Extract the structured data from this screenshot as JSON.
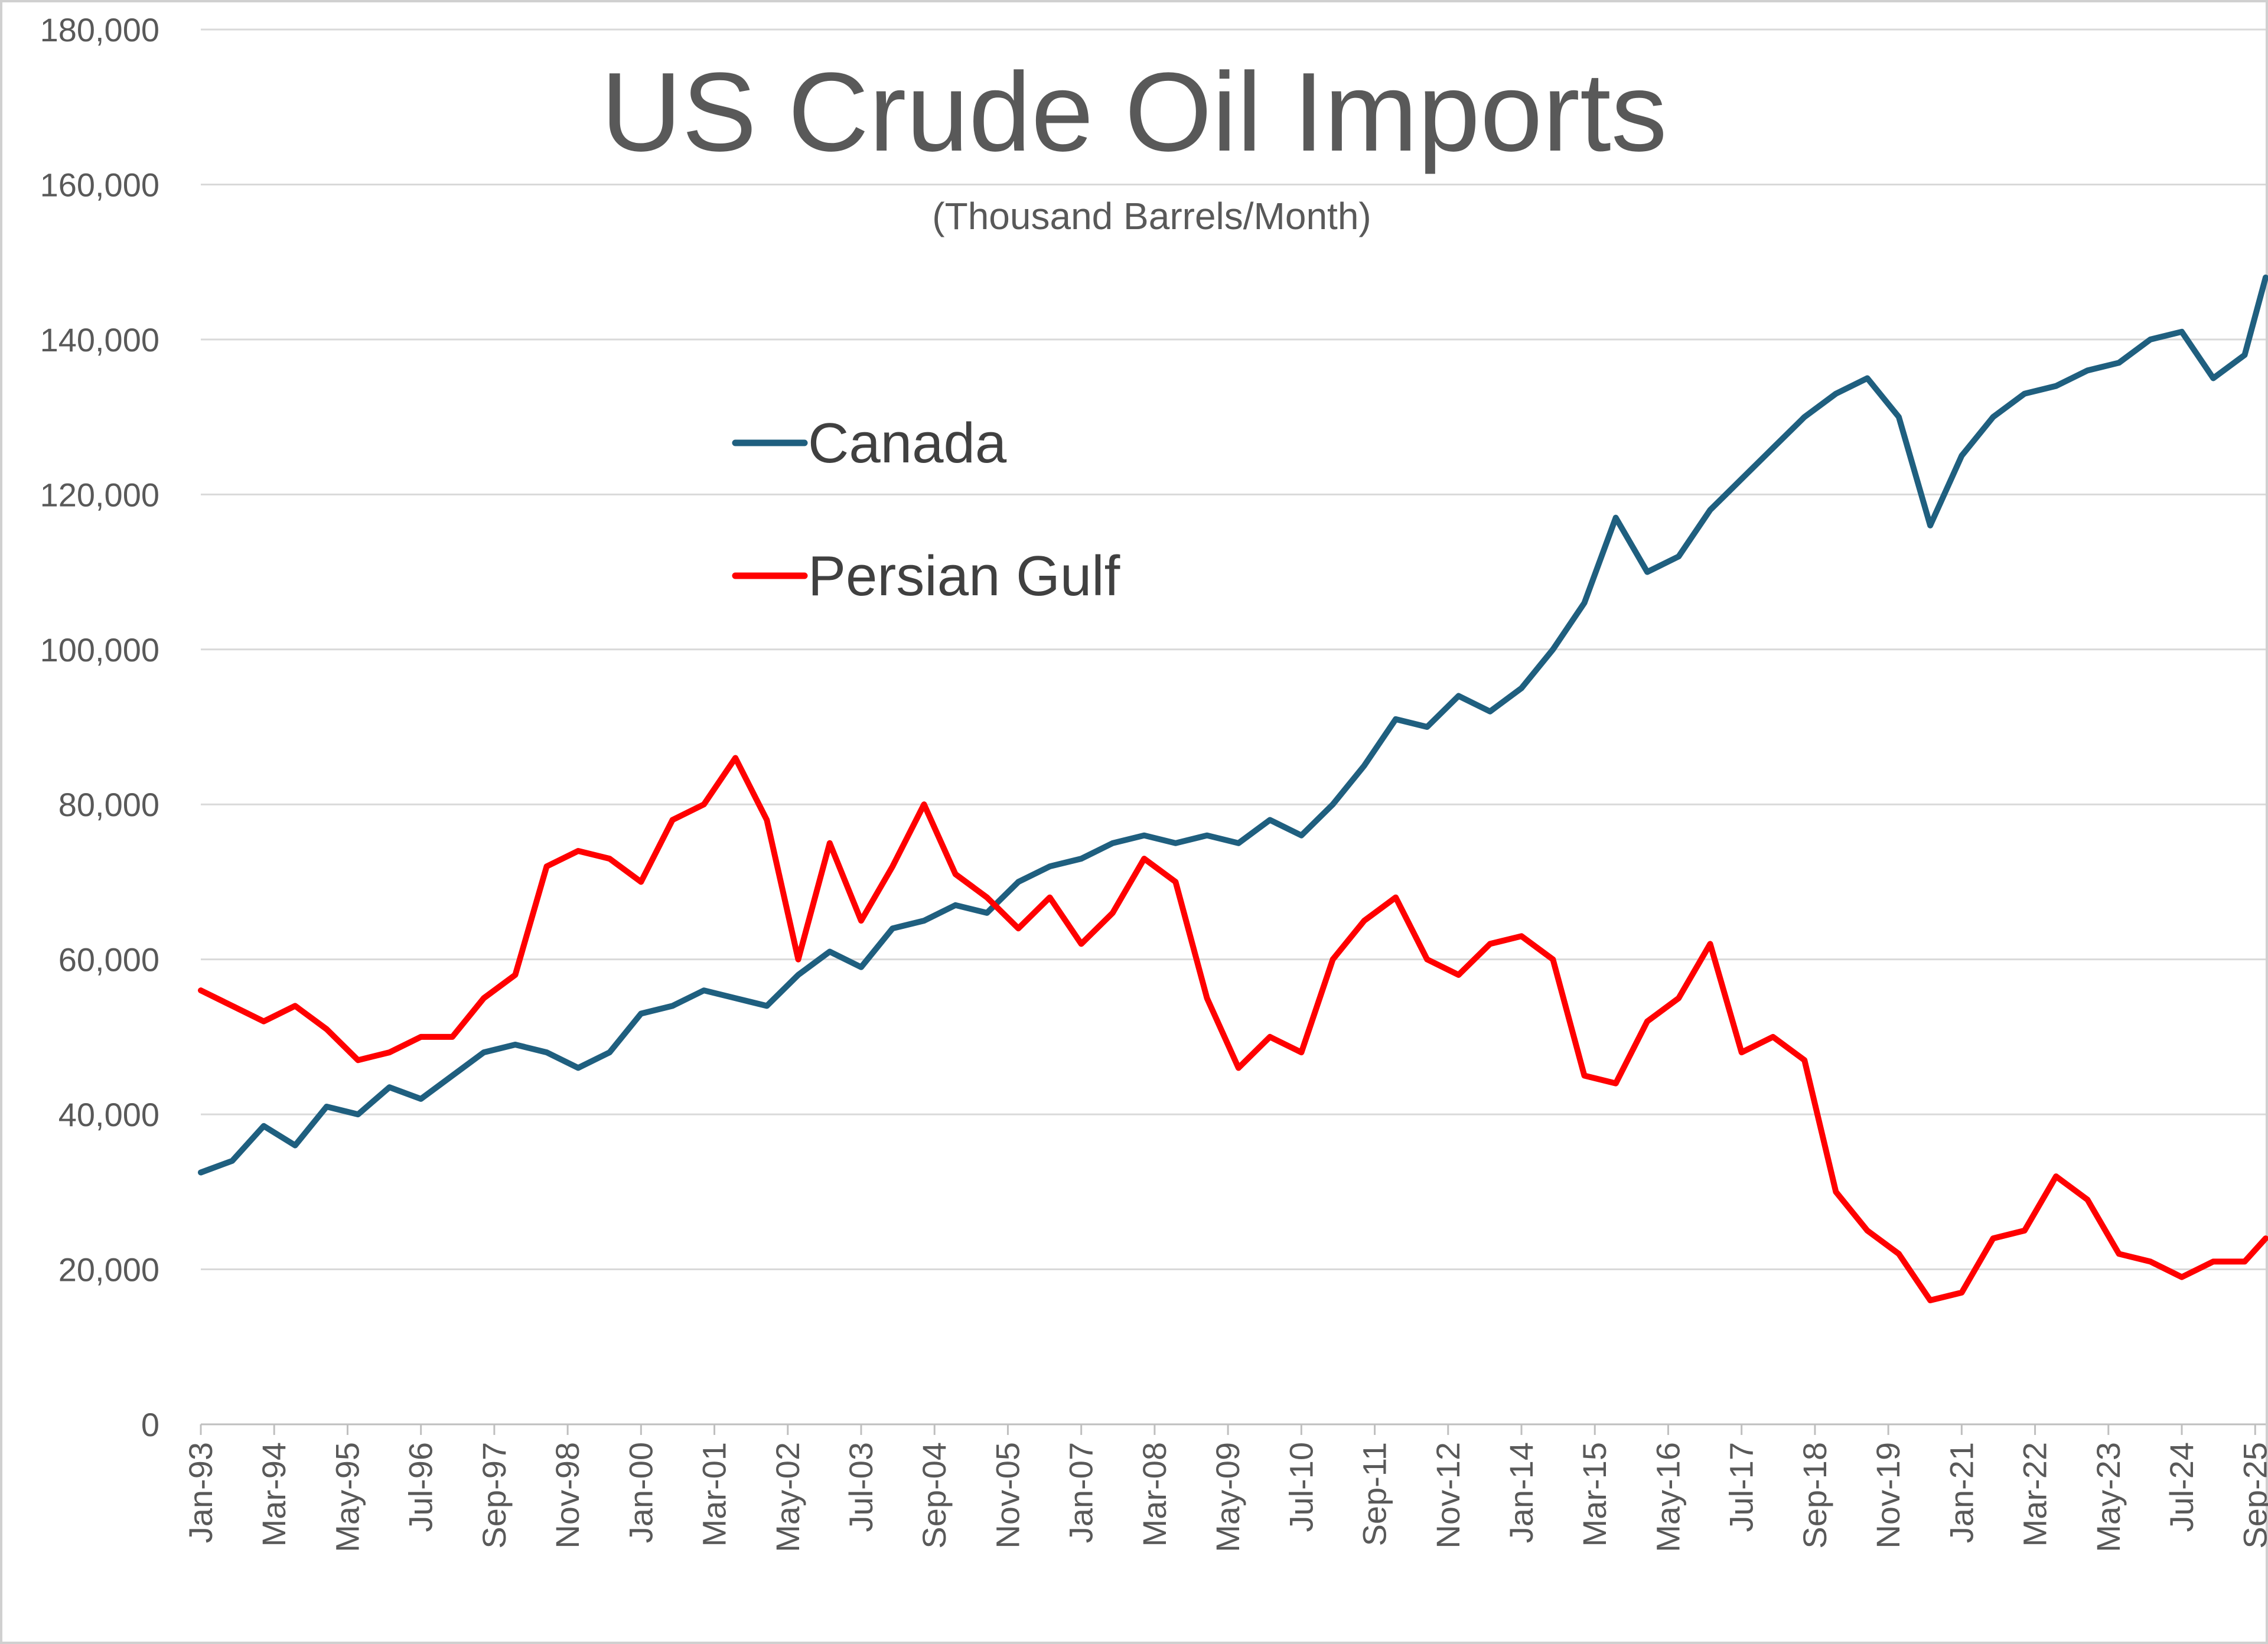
{
  "chart_data": {
    "type": "line",
    "title": "US Crude Oil Imports",
    "subtitle": "(Thousand Barrels/Month)",
    "xlabel": "",
    "ylabel": "",
    "ylim": [
      0,
      180000
    ],
    "yticks": [
      0,
      20000,
      40000,
      60000,
      80000,
      100000,
      120000,
      140000,
      160000,
      180000
    ],
    "ytick_labels": [
      "0",
      "20,000",
      "40,000",
      "60,000",
      "80,000",
      "100,000",
      "120,000",
      "140,000",
      "160,000",
      "180,000"
    ],
    "x_tick_labels": [
      "Jan-93",
      "Mar-94",
      "May-95",
      "Jul-96",
      "Sep-97",
      "Nov-98",
      "Jan-00",
      "Mar-01",
      "May-02",
      "Jul-03",
      "Sep-04",
      "Nov-05",
      "Jan-07",
      "Mar-08",
      "May-09",
      "Jul-10",
      "Sep-11",
      "Nov-12",
      "Jan-14",
      "Mar-15",
      "May-16",
      "Jul-17",
      "Sep-18",
      "Nov-19",
      "Jan-21",
      "Mar-22",
      "May-23",
      "Jul-24",
      "Sep-25"
    ],
    "grid": true,
    "legend": "upper-left",
    "series": [
      {
        "name": "Canada",
        "color": "#1f5f7f",
        "points": [
          [
            "1993-01",
            32500
          ],
          [
            "1993-07",
            34000
          ],
          [
            "1994-01",
            38500
          ],
          [
            "1994-07",
            36000
          ],
          [
            "1995-01",
            41000
          ],
          [
            "1995-07",
            40000
          ],
          [
            "1996-01",
            43500
          ],
          [
            "1996-07",
            42000
          ],
          [
            "1997-01",
            45000
          ],
          [
            "1997-07",
            48000
          ],
          [
            "1998-01",
            49000
          ],
          [
            "1998-07",
            48000
          ],
          [
            "1999-01",
            46000
          ],
          [
            "1999-07",
            48000
          ],
          [
            "2000-01",
            53000
          ],
          [
            "2000-07",
            54000
          ],
          [
            "2001-01",
            56000
          ],
          [
            "2001-07",
            55000
          ],
          [
            "2002-01",
            54000
          ],
          [
            "2002-07",
            58000
          ],
          [
            "2003-01",
            61000
          ],
          [
            "2003-07",
            59000
          ],
          [
            "2004-01",
            64000
          ],
          [
            "2004-07",
            65000
          ],
          [
            "2005-01",
            67000
          ],
          [
            "2005-07",
            66000
          ],
          [
            "2006-01",
            70000
          ],
          [
            "2006-07",
            72000
          ],
          [
            "2007-01",
            73000
          ],
          [
            "2007-07",
            75000
          ],
          [
            "2008-01",
            76000
          ],
          [
            "2008-07",
            75000
          ],
          [
            "2009-01",
            76000
          ],
          [
            "2009-07",
            75000
          ],
          [
            "2010-01",
            78000
          ],
          [
            "2010-07",
            76000
          ],
          [
            "2011-01",
            80000
          ],
          [
            "2011-07",
            85000
          ],
          [
            "2012-01",
            91000
          ],
          [
            "2012-07",
            90000
          ],
          [
            "2013-01",
            94000
          ],
          [
            "2013-07",
            92000
          ],
          [
            "2014-01",
            95000
          ],
          [
            "2014-07",
            100000
          ],
          [
            "2015-01",
            106000
          ],
          [
            "2015-07",
            117000
          ],
          [
            "2016-01",
            110000
          ],
          [
            "2016-07",
            112000
          ],
          [
            "2017-01",
            118000
          ],
          [
            "2017-07",
            122000
          ],
          [
            "2018-01",
            126000
          ],
          [
            "2018-07",
            130000
          ],
          [
            "2019-01",
            133000
          ],
          [
            "2019-07",
            135000
          ],
          [
            "2020-01",
            130000
          ],
          [
            "2020-07",
            116000
          ],
          [
            "2021-01",
            125000
          ],
          [
            "2021-07",
            130000
          ],
          [
            "2022-01",
            133000
          ],
          [
            "2022-07",
            134000
          ],
          [
            "2023-01",
            136000
          ],
          [
            "2023-07",
            137000
          ],
          [
            "2024-01",
            140000
          ],
          [
            "2024-07",
            141000
          ],
          [
            "2025-01",
            135000
          ],
          [
            "2025-07",
            138000
          ],
          [
            "2025-11",
            148000
          ]
        ]
      },
      {
        "name": "Persian Gulf",
        "color": "#ff0000",
        "points": [
          [
            "1993-01",
            56000
          ],
          [
            "1993-07",
            54000
          ],
          [
            "1994-01",
            52000
          ],
          [
            "1994-07",
            54000
          ],
          [
            "1995-01",
            51000
          ],
          [
            "1995-07",
            47000
          ],
          [
            "1996-01",
            48000
          ],
          [
            "1996-07",
            50000
          ],
          [
            "1997-01",
            50000
          ],
          [
            "1997-07",
            55000
          ],
          [
            "1998-01",
            58000
          ],
          [
            "1998-07",
            72000
          ],
          [
            "1999-01",
            74000
          ],
          [
            "1999-07",
            73000
          ],
          [
            "2000-01",
            70000
          ],
          [
            "2000-07",
            78000
          ],
          [
            "2001-01",
            80000
          ],
          [
            "2001-07",
            86000
          ],
          [
            "2002-01",
            78000
          ],
          [
            "2002-07",
            60000
          ],
          [
            "2003-01",
            75000
          ],
          [
            "2003-07",
            65000
          ],
          [
            "2004-01",
            72000
          ],
          [
            "2004-07",
            80000
          ],
          [
            "2005-01",
            71000
          ],
          [
            "2005-07",
            68000
          ],
          [
            "2006-01",
            64000
          ],
          [
            "2006-07",
            68000
          ],
          [
            "2007-01",
            62000
          ],
          [
            "2007-07",
            66000
          ],
          [
            "2008-01",
            73000
          ],
          [
            "2008-07",
            70000
          ],
          [
            "2009-01",
            55000
          ],
          [
            "2009-07",
            46000
          ],
          [
            "2010-01",
            50000
          ],
          [
            "2010-07",
            48000
          ],
          [
            "2011-01",
            60000
          ],
          [
            "2011-07",
            65000
          ],
          [
            "2012-01",
            68000
          ],
          [
            "2012-07",
            60000
          ],
          [
            "2013-01",
            58000
          ],
          [
            "2013-07",
            62000
          ],
          [
            "2014-01",
            63000
          ],
          [
            "2014-07",
            60000
          ],
          [
            "2015-01",
            45000
          ],
          [
            "2015-07",
            44000
          ],
          [
            "2016-01",
            52000
          ],
          [
            "2016-07",
            55000
          ],
          [
            "2017-01",
            62000
          ],
          [
            "2017-07",
            48000
          ],
          [
            "2018-01",
            50000
          ],
          [
            "2018-07",
            47000
          ],
          [
            "2019-01",
            30000
          ],
          [
            "2019-07",
            25000
          ],
          [
            "2020-01",
            22000
          ],
          [
            "2020-07",
            16000
          ],
          [
            "2021-01",
            17000
          ],
          [
            "2021-07",
            24000
          ],
          [
            "2022-01",
            25000
          ],
          [
            "2022-07",
            32000
          ],
          [
            "2023-01",
            29000
          ],
          [
            "2023-07",
            22000
          ],
          [
            "2024-01",
            21000
          ],
          [
            "2024-07",
            19000
          ],
          [
            "2025-01",
            21000
          ],
          [
            "2025-07",
            21000
          ],
          [
            "2025-11",
            24000
          ]
        ]
      }
    ]
  }
}
